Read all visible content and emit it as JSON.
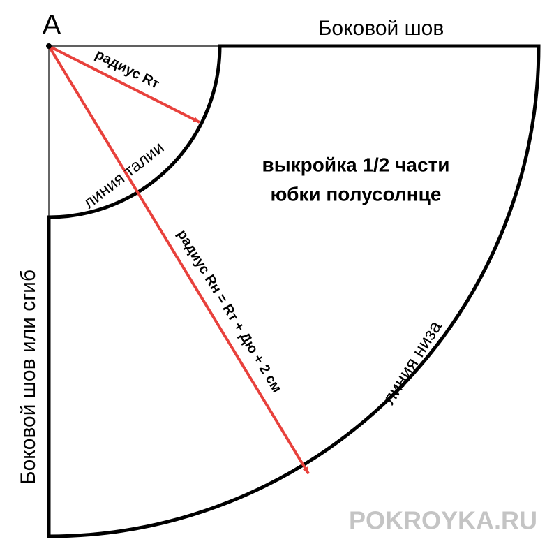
{
  "point_label": "A",
  "top_label": "Боковой шов",
  "left_label": "Боковой шов или сгиб",
  "title": {
    "line1": "выкройка 1/2 части",
    "line2": "юбки полусолнце"
  },
  "waist_label": "линия талии",
  "hem_label": "линия низа",
  "radius_waist": "радиус Rт",
  "radius_hem": "радиус Rн = Rт + Дю + 2 см",
  "watermark": "POKROYKA.RU"
}
